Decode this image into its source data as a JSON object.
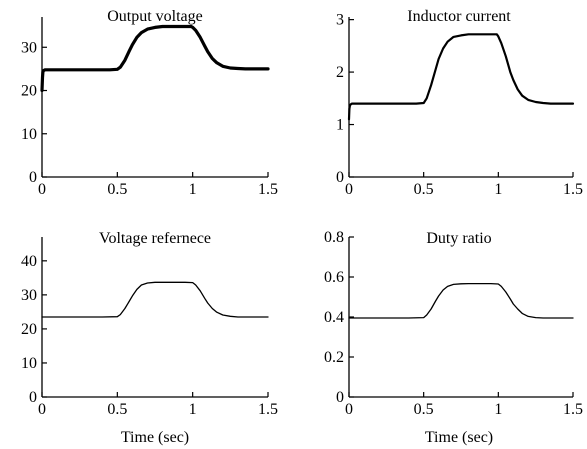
{
  "chart_data": [
    {
      "type": "line",
      "title": "Output voltage",
      "xlabel": "",
      "ylabel": "",
      "xlim": [
        0,
        1.5
      ],
      "ylim": [
        0,
        37
      ],
      "xticks": [
        "0",
        "0.5",
        "1",
        "1.5"
      ],
      "yticks": [
        "0",
        "10",
        "20",
        "30"
      ],
      "series": [
        {
          "x": [
            0,
            0.003,
            0.006,
            0.01,
            0.02,
            0.05,
            0.1,
            0.2,
            0.3,
            0.4,
            0.45,
            0.5,
            0.52,
            0.55,
            0.58,
            0.6,
            0.63,
            0.66,
            0.7,
            0.75,
            0.8,
            0.85,
            0.9,
            0.95,
            0.99,
            1.0,
            1.02,
            1.05,
            1.08,
            1.1,
            1.13,
            1.16,
            1.2,
            1.25,
            1.3,
            1.35,
            1.4,
            1.45,
            1.5
          ],
          "y": [
            20,
            23,
            24.3,
            24.6,
            24.8,
            24.8,
            24.8,
            24.8,
            24.8,
            24.8,
            24.8,
            24.9,
            25.4,
            27,
            29.2,
            30.6,
            32.3,
            33.4,
            34.2,
            34.6,
            34.8,
            34.8,
            34.8,
            34.8,
            34.8,
            34.6,
            33.9,
            32.3,
            30.3,
            29,
            27.4,
            26.4,
            25.6,
            25.2,
            25.1,
            25.0,
            25.0,
            25.0,
            25.0
          ]
        }
      ]
    },
    {
      "type": "line",
      "title": "Inductor current",
      "xlabel": "",
      "ylabel": "",
      "xlim": [
        0,
        1.5
      ],
      "ylim": [
        0,
        3.05
      ],
      "xticks": [
        "0",
        "0.5",
        "1",
        "1.5"
      ],
      "yticks": [
        "0",
        "1",
        "2",
        "3"
      ],
      "series": [
        {
          "x": [
            0,
            0.003,
            0.006,
            0.01,
            0.02,
            0.05,
            0.1,
            0.2,
            0.3,
            0.4,
            0.45,
            0.5,
            0.52,
            0.55,
            0.58,
            0.6,
            0.63,
            0.66,
            0.7,
            0.75,
            0.8,
            0.85,
            0.9,
            0.95,
            0.99,
            1.0,
            1.02,
            1.05,
            1.08,
            1.1,
            1.13,
            1.16,
            1.2,
            1.25,
            1.3,
            1.35,
            1.4,
            1.45,
            1.5
          ],
          "y": [
            1.1,
            1.3,
            1.36,
            1.38,
            1.4,
            1.4,
            1.4,
            1.4,
            1.4,
            1.4,
            1.4,
            1.41,
            1.5,
            1.75,
            2.05,
            2.25,
            2.45,
            2.58,
            2.67,
            2.7,
            2.72,
            2.72,
            2.72,
            2.72,
            2.72,
            2.68,
            2.55,
            2.3,
            2.0,
            1.85,
            1.67,
            1.55,
            1.47,
            1.43,
            1.41,
            1.4,
            1.4,
            1.4,
            1.4
          ]
        }
      ]
    },
    {
      "type": "line",
      "title": "Voltage refernece",
      "xlabel": "Time (sec)",
      "ylabel": "",
      "xlim": [
        0,
        1.5
      ],
      "ylim": [
        0,
        47
      ],
      "xticks": [
        "0",
        "0.5",
        "1",
        "1.5"
      ],
      "yticks": [
        "0",
        "10",
        "20",
        "30",
        "40"
      ],
      "series": [
        {
          "x": [
            0,
            0.1,
            0.2,
            0.3,
            0.4,
            0.5,
            0.52,
            0.55,
            0.58,
            0.6,
            0.63,
            0.66,
            0.7,
            0.75,
            0.8,
            0.85,
            0.9,
            0.95,
            1.0,
            1.02,
            1.05,
            1.08,
            1.1,
            1.13,
            1.16,
            1.2,
            1.25,
            1.3,
            1.4,
            1.5
          ],
          "y": [
            23.5,
            23.5,
            23.5,
            23.5,
            23.5,
            23.6,
            24.2,
            26,
            28.2,
            29.7,
            31.6,
            32.9,
            33.5,
            33.7,
            33.7,
            33.7,
            33.7,
            33.7,
            33.6,
            32.9,
            31.2,
            29,
            27.6,
            26,
            24.9,
            24.1,
            23.7,
            23.5,
            23.5,
            23.5
          ]
        }
      ]
    },
    {
      "type": "line",
      "title": "Duty ratio",
      "xlabel": "Time (sec)",
      "ylabel": "",
      "xlim": [
        0,
        1.5
      ],
      "ylim": [
        0,
        0.8
      ],
      "xticks": [
        "0",
        "0.5",
        "1",
        "1.5"
      ],
      "yticks": [
        "0",
        "0.2",
        "0.4",
        "0.6",
        "0.8"
      ],
      "series": [
        {
          "x": [
            0,
            0.1,
            0.2,
            0.3,
            0.4,
            0.5,
            0.52,
            0.55,
            0.58,
            0.6,
            0.63,
            0.66,
            0.7,
            0.75,
            0.8,
            0.85,
            0.9,
            0.95,
            1.0,
            1.02,
            1.05,
            1.08,
            1.1,
            1.13,
            1.16,
            1.2,
            1.25,
            1.3,
            1.4,
            1.5
          ],
          "y": [
            0.395,
            0.395,
            0.395,
            0.395,
            0.395,
            0.397,
            0.41,
            0.44,
            0.48,
            0.505,
            0.535,
            0.553,
            0.563,
            0.566,
            0.567,
            0.567,
            0.567,
            0.567,
            0.565,
            0.553,
            0.525,
            0.49,
            0.465,
            0.44,
            0.418,
            0.403,
            0.397,
            0.395,
            0.395,
            0.395
          ]
        }
      ]
    }
  ],
  "style": {
    "line_color": "#000000",
    "line_widths": [
      3.2,
      2.2,
      1.3,
      1.3
    ]
  }
}
